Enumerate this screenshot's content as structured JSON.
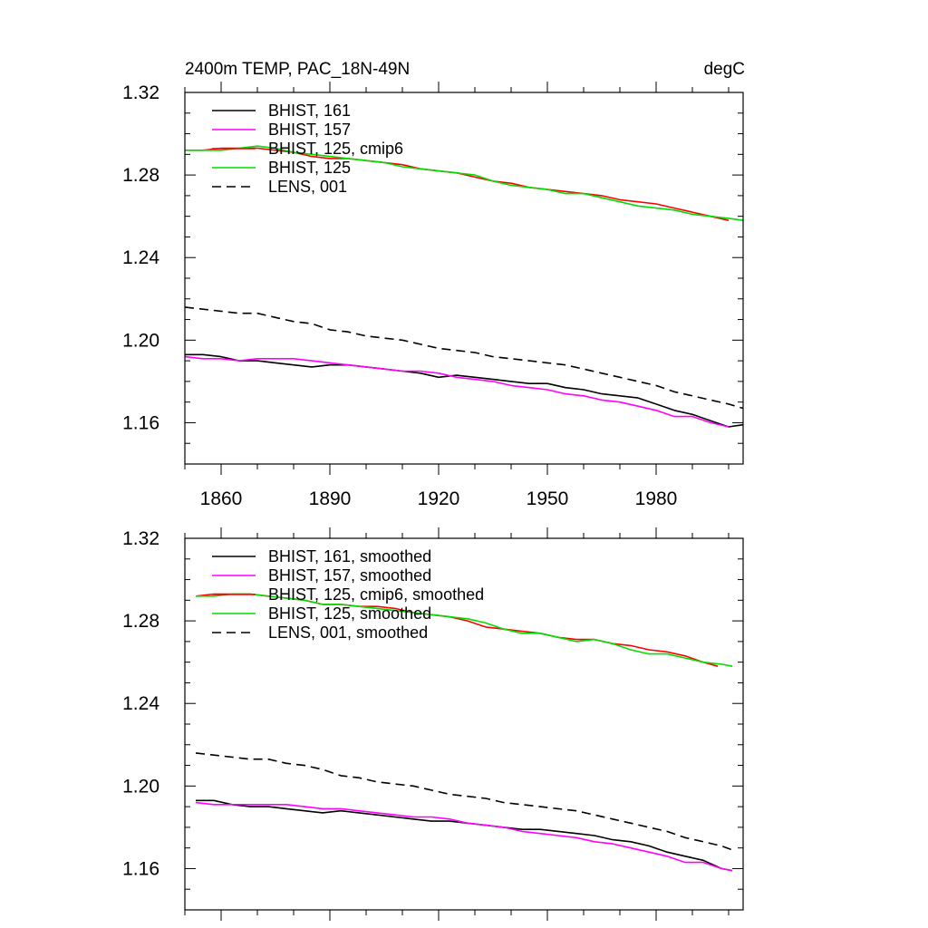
{
  "chart_data": [
    {
      "type": "line",
      "title_left": "2400m TEMP, PAC_18N-49N",
      "title_right": "degC",
      "xlabel": "",
      "ylabel": "",
      "xlim": [
        1850,
        2004
      ],
      "ylim": [
        1.14,
        1.32
      ],
      "xticks": [
        1860,
        1890,
        1920,
        1950,
        1980
      ],
      "xtick_labels": [
        "1860",
        "1890",
        "1920",
        "1950",
        "1980"
      ],
      "yticks": [
        1.16,
        1.2,
        1.24,
        1.28,
        1.32
      ],
      "ytick_labels": [
        "1.16",
        "1.20",
        "1.24",
        "1.28",
        "1.32"
      ],
      "legend_position": "top-left",
      "series": [
        {
          "name": "BHIST, 161",
          "color": "#000000",
          "style": "solid",
          "x": [
            1850,
            1855,
            1860,
            1865,
            1870,
            1875,
            1880,
            1885,
            1890,
            1895,
            1900,
            1905,
            1910,
            1915,
            1920,
            1925,
            1930,
            1935,
            1940,
            1945,
            1950,
            1955,
            1960,
            1965,
            1970,
            1975,
            1980,
            1985,
            1990,
            1995,
            2000,
            2004
          ],
          "y": [
            1.193,
            1.193,
            1.192,
            1.19,
            1.19,
            1.189,
            1.188,
            1.187,
            1.188,
            1.188,
            1.187,
            1.186,
            1.185,
            1.184,
            1.182,
            1.183,
            1.182,
            1.181,
            1.18,
            1.179,
            1.179,
            1.177,
            1.176,
            1.174,
            1.173,
            1.172,
            1.169,
            1.166,
            1.164,
            1.161,
            1.158,
            1.159
          ]
        },
        {
          "name": "BHIST, 157",
          "color": "#ff00ff",
          "style": "solid",
          "x": [
            1850,
            1855,
            1860,
            1865,
            1870,
            1875,
            1880,
            1885,
            1890,
            1895,
            1900,
            1905,
            1910,
            1915,
            1920,
            1925,
            1930,
            1935,
            1940,
            1945,
            1950,
            1955,
            1960,
            1965,
            1970,
            1975,
            1980,
            1985,
            1990,
            1995,
            2000
          ],
          "y": [
            1.192,
            1.191,
            1.191,
            1.19,
            1.191,
            1.191,
            1.191,
            1.19,
            1.189,
            1.188,
            1.187,
            1.186,
            1.185,
            1.185,
            1.184,
            1.182,
            1.181,
            1.18,
            1.178,
            1.177,
            1.176,
            1.174,
            1.173,
            1.171,
            1.17,
            1.168,
            1.166,
            1.163,
            1.163,
            1.16,
            1.158
          ]
        },
        {
          "name": "BHIST, 125, cmip6",
          "color": "#ff0000",
          "style": "solid",
          "x": [
            1850,
            1855,
            1860,
            1865,
            1870,
            1875,
            1880,
            1885,
            1890,
            1895,
            1900,
            1905,
            1910,
            1915,
            1920,
            1925,
            1930,
            1935,
            1940,
            1945,
            1950,
            1955,
            1960,
            1965,
            1970,
            1975,
            1980,
            1985,
            1990,
            1995,
            2000
          ],
          "y": [
            1.292,
            1.292,
            1.293,
            1.293,
            1.293,
            1.292,
            1.291,
            1.289,
            1.288,
            1.288,
            1.287,
            1.286,
            1.285,
            1.283,
            1.282,
            1.281,
            1.279,
            1.277,
            1.276,
            1.274,
            1.273,
            1.272,
            1.271,
            1.27,
            1.268,
            1.267,
            1.266,
            1.264,
            1.262,
            1.26,
            1.258
          ]
        },
        {
          "name": "BHIST, 125",
          "color": "#00dd00",
          "style": "solid",
          "x": [
            1850,
            1855,
            1860,
            1865,
            1870,
            1875,
            1880,
            1885,
            1890,
            1895,
            1900,
            1905,
            1910,
            1915,
            1920,
            1925,
            1930,
            1935,
            1940,
            1945,
            1950,
            1955,
            1960,
            1965,
            1970,
            1975,
            1980,
            1985,
            1990,
            1995,
            2000,
            2004
          ],
          "y": [
            1.292,
            1.292,
            1.292,
            1.293,
            1.294,
            1.293,
            1.291,
            1.29,
            1.289,
            1.288,
            1.287,
            1.286,
            1.284,
            1.283,
            1.282,
            1.281,
            1.28,
            1.277,
            1.275,
            1.274,
            1.273,
            1.271,
            1.271,
            1.269,
            1.267,
            1.265,
            1.264,
            1.263,
            1.261,
            1.26,
            1.259,
            1.258
          ]
        },
        {
          "name": "LENS, 001",
          "color": "#000000",
          "style": "dashed",
          "x": [
            1850,
            1855,
            1860,
            1865,
            1870,
            1875,
            1880,
            1885,
            1890,
            1895,
            1900,
            1905,
            1910,
            1915,
            1920,
            1925,
            1930,
            1935,
            1940,
            1945,
            1950,
            1955,
            1960,
            1965,
            1970,
            1975,
            1980,
            1985,
            1990,
            1995,
            2000,
            2004
          ],
          "y": [
            1.216,
            1.215,
            1.214,
            1.213,
            1.213,
            1.211,
            1.209,
            1.208,
            1.205,
            1.204,
            1.202,
            1.201,
            1.2,
            1.198,
            1.196,
            1.195,
            1.194,
            1.192,
            1.191,
            1.19,
            1.189,
            1.188,
            1.186,
            1.184,
            1.182,
            1.18,
            1.178,
            1.175,
            1.173,
            1.171,
            1.169,
            1.167
          ]
        }
      ]
    },
    {
      "type": "line",
      "xlim": [
        1850,
        2004
      ],
      "ylim": [
        1.14,
        1.32
      ],
      "xticks": [
        1860,
        1890,
        1920,
        1950,
        1980
      ],
      "yticks": [
        1.16,
        1.2,
        1.24,
        1.28,
        1.32
      ],
      "ytick_labels": [
        "1.16",
        "1.20",
        "1.24",
        "1.28",
        "1.32"
      ],
      "legend_position": "top-left",
      "series": [
        {
          "name": "BHIST, 161, smoothed",
          "color": "#000000",
          "style": "solid",
          "x": [
            1853,
            1858,
            1863,
            1868,
            1873,
            1878,
            1883,
            1888,
            1893,
            1898,
            1903,
            1908,
            1913,
            1918,
            1923,
            1928,
            1933,
            1938,
            1943,
            1948,
            1953,
            1958,
            1963,
            1968,
            1973,
            1978,
            1983,
            1988,
            1993,
            1998,
            2001
          ],
          "y": [
            1.193,
            1.193,
            1.191,
            1.19,
            1.19,
            1.189,
            1.188,
            1.187,
            1.188,
            1.187,
            1.186,
            1.185,
            1.184,
            1.183,
            1.183,
            1.182,
            1.181,
            1.18,
            1.179,
            1.179,
            1.178,
            1.177,
            1.176,
            1.174,
            1.173,
            1.171,
            1.168,
            1.166,
            1.164,
            1.16,
            1.159
          ]
        },
        {
          "name": "BHIST, 157, smoothed",
          "color": "#ff00ff",
          "style": "solid",
          "x": [
            1853,
            1858,
            1863,
            1868,
            1873,
            1878,
            1883,
            1888,
            1893,
            1898,
            1903,
            1908,
            1913,
            1918,
            1923,
            1928,
            1933,
            1938,
            1943,
            1948,
            1953,
            1958,
            1963,
            1968,
            1973,
            1978,
            1983,
            1988,
            1993,
            1998,
            2001
          ],
          "y": [
            1.192,
            1.191,
            1.191,
            1.191,
            1.191,
            1.191,
            1.19,
            1.189,
            1.189,
            1.188,
            1.187,
            1.186,
            1.185,
            1.185,
            1.184,
            1.182,
            1.181,
            1.18,
            1.178,
            1.177,
            1.176,
            1.175,
            1.173,
            1.172,
            1.17,
            1.168,
            1.166,
            1.163,
            1.163,
            1.16,
            1.159
          ]
        },
        {
          "name": "BHIST, 125, cmip6, smoothed",
          "color": "#ff0000",
          "style": "solid",
          "x": [
            1853,
            1858,
            1863,
            1868,
            1873,
            1878,
            1883,
            1888,
            1893,
            1898,
            1903,
            1908,
            1913,
            1918,
            1923,
            1928,
            1933,
            1938,
            1943,
            1948,
            1953,
            1958,
            1963,
            1968,
            1973,
            1978,
            1983,
            1988,
            1993,
            1997
          ],
          "y": [
            1.292,
            1.293,
            1.293,
            1.293,
            1.292,
            1.291,
            1.29,
            1.288,
            1.288,
            1.287,
            1.287,
            1.286,
            1.284,
            1.283,
            1.282,
            1.28,
            1.277,
            1.276,
            1.275,
            1.274,
            1.272,
            1.271,
            1.271,
            1.269,
            1.268,
            1.266,
            1.265,
            1.263,
            1.26,
            1.258
          ]
        },
        {
          "name": "BHIST, 125, smoothed",
          "color": "#00dd00",
          "style": "solid",
          "x": [
            1853,
            1858,
            1863,
            1868,
            1873,
            1878,
            1883,
            1888,
            1893,
            1898,
            1903,
            1908,
            1913,
            1918,
            1923,
            1928,
            1933,
            1938,
            1943,
            1948,
            1953,
            1958,
            1963,
            1968,
            1973,
            1978,
            1983,
            1988,
            1993,
            1998,
            2001
          ],
          "y": [
            1.292,
            1.292,
            1.293,
            1.293,
            1.292,
            1.291,
            1.29,
            1.288,
            1.288,
            1.287,
            1.286,
            1.285,
            1.284,
            1.283,
            1.282,
            1.281,
            1.279,
            1.276,
            1.274,
            1.274,
            1.272,
            1.27,
            1.271,
            1.269,
            1.266,
            1.264,
            1.264,
            1.262,
            1.26,
            1.259,
            1.258
          ]
        },
        {
          "name": "LENS, 001, smoothed",
          "color": "#000000",
          "style": "dashed",
          "x": [
            1853,
            1858,
            1863,
            1868,
            1873,
            1878,
            1883,
            1888,
            1893,
            1898,
            1903,
            1908,
            1913,
            1918,
            1923,
            1928,
            1933,
            1938,
            1943,
            1948,
            1953,
            1958,
            1963,
            1968,
            1973,
            1978,
            1983,
            1988,
            1993,
            1998,
            2001
          ],
          "y": [
            1.216,
            1.215,
            1.214,
            1.213,
            1.213,
            1.211,
            1.21,
            1.208,
            1.205,
            1.204,
            1.202,
            1.201,
            1.2,
            1.198,
            1.196,
            1.195,
            1.194,
            1.192,
            1.191,
            1.19,
            1.189,
            1.188,
            1.186,
            1.184,
            1.182,
            1.18,
            1.178,
            1.175,
            1.173,
            1.171,
            1.169
          ]
        }
      ]
    }
  ]
}
